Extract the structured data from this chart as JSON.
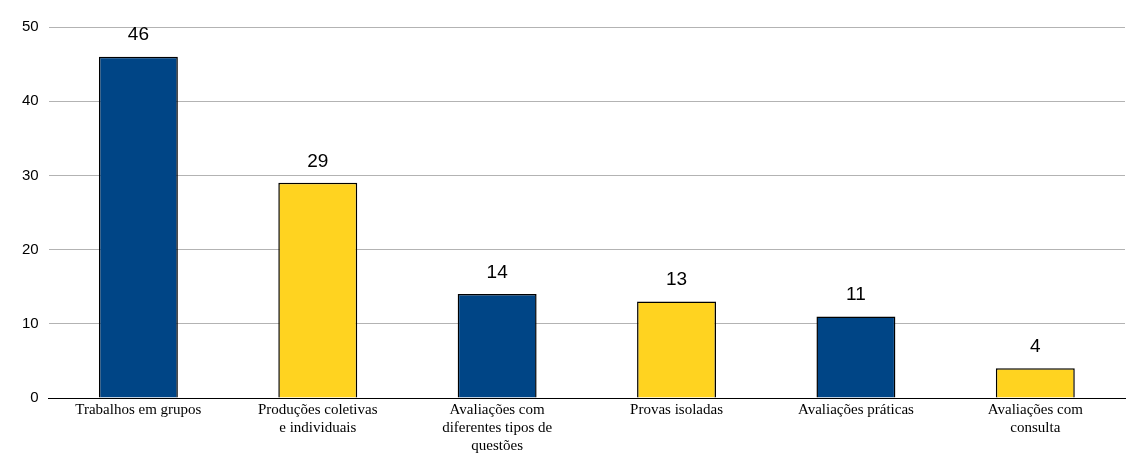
{
  "chart_data": {
    "type": "bar",
    "categories": [
      "Trabalhos em grupos",
      "Produções coletivas e individuais",
      "Avaliações com diferentes tipos de questões",
      "Provas isoladas",
      "Avaliações práticas",
      "Avaliações com consulta"
    ],
    "values": [
      46,
      29,
      14,
      13,
      11,
      4
    ],
    "colors": [
      "#004586",
      "#ffd320",
      "#004586",
      "#ffd320",
      "#004586",
      "#ffd320"
    ],
    "ylim": [
      0,
      50
    ],
    "yticks": [
      0,
      10,
      20,
      30,
      40,
      50
    ],
    "grid": "y",
    "legend": false,
    "data_labels": true
  }
}
